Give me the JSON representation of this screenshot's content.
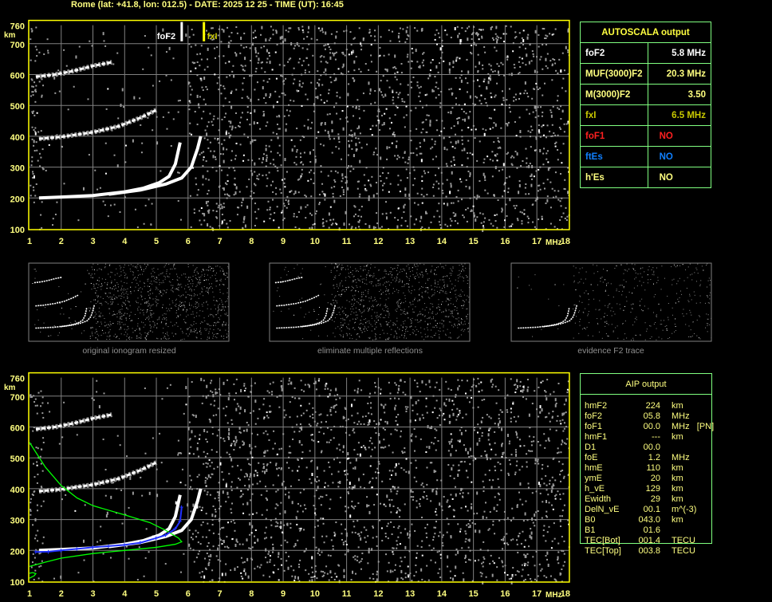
{
  "header": {
    "title": "Rome (lat: +41.8, lon: 012.5) - DATE: 2025 12 25 - TIME (UT): 16:45"
  },
  "colors": {
    "axis": "#ffff00",
    "grid": "#808080",
    "trace": "#ffffff",
    "noise": "#9a9a9a",
    "profile": "#00ff00",
    "aip_points": "#0000ff",
    "table_border": "#80ff80",
    "text_yellow": "#ffff80",
    "fof1": "#ff2020",
    "ftes": "#1080ff",
    "fxi": "#c8c800"
  },
  "autoscala": {
    "title": "AUTOSCALA output",
    "rows": [
      {
        "label": "foF2",
        "value": "5.8 MHz",
        "color": "#ffffff"
      },
      {
        "label": "MUF(3000)F2",
        "value": "20.3 MHz",
        "color": "#ffff80"
      },
      {
        "label": "M(3000)F2",
        "value": "3.50",
        "color": "#ffff80"
      },
      {
        "label": "fxI",
        "value": "6.5 MHz",
        "color": "#c8c800"
      },
      {
        "label": "foF1",
        "value": "NO",
        "color": "#ff2020"
      },
      {
        "label": "ftEs",
        "value": "NO",
        "color": "#1080ff"
      },
      {
        "label": "h'Es",
        "value": "NO",
        "color": "#ffff80"
      }
    ]
  },
  "aip": {
    "title": "AIP output",
    "rows": [
      [
        "hmF2",
        "224",
        "km"
      ],
      [
        "foF2",
        "05.8",
        "MHz"
      ],
      [
        "foF1",
        "00.0",
        "MHz   [PN]"
      ],
      [
        "hmF1",
        "---",
        "km"
      ],
      [
        "D1",
        "00.0",
        ""
      ],
      [
        "foE",
        "1.2",
        "MHz"
      ],
      [
        "hmE",
        "110",
        "km"
      ],
      [
        "ymE",
        "20",
        "km"
      ],
      [
        "h_vE",
        "129",
        "km"
      ],
      [
        "Ewidth",
        "29",
        "km"
      ],
      [
        "DelN_vE",
        "00.1",
        "m^(-3)"
      ],
      [
        "B0",
        "043.0",
        "km"
      ],
      [
        "B1",
        "01.6",
        ""
      ],
      [
        "TEC[Bot]",
        "001.4",
        "TECU"
      ],
      [
        "TEC[Top]",
        "003.8",
        "TECU"
      ]
    ]
  },
  "thumbnails": [
    {
      "caption": "original ionogram resized"
    },
    {
      "caption": "eliminate multiple reflections"
    },
    {
      "caption": "evidence F2 trace"
    }
  ],
  "chart_data": [
    {
      "type": "scatter",
      "title": "",
      "xlabel": "MHz",
      "ylabel": "km",
      "xlim": [
        1,
        18
      ],
      "ylim": [
        100,
        760
      ],
      "xticks": [
        "1",
        "2",
        "3",
        "4",
        "5",
        "6",
        "7",
        "8",
        "9",
        "10",
        "11",
        "12",
        "13",
        "14",
        "15",
        "16",
        "17",
        "18"
      ],
      "yticks": [
        "100",
        "200",
        "300",
        "400",
        "500",
        "600",
        "700",
        "760"
      ],
      "grid": true,
      "markers": [
        {
          "name": "foF2",
          "x": 5.8
        },
        {
          "name": "fxI",
          "x": 6.5
        }
      ],
      "series": [
        {
          "trace": "F2 ordinary",
          "points": [
            [
              1.3,
              200
            ],
            [
              2,
              203
            ],
            [
              3,
              208
            ],
            [
              4,
              220
            ],
            [
              4.6,
              232
            ],
            [
              5.1,
              250
            ],
            [
              5.4,
              270
            ],
            [
              5.6,
              310
            ],
            [
              5.75,
              380
            ]
          ]
        },
        {
          "trace": "F2 extraordinary",
          "points": [
            [
              3.5,
              212
            ],
            [
              4.5,
              226
            ],
            [
              5.3,
              245
            ],
            [
              5.8,
              265
            ],
            [
              6.1,
              300
            ],
            [
              6.3,
              360
            ],
            [
              6.4,
              400
            ]
          ]
        },
        {
          "trace": "F2 second hop",
          "points": [
            [
              1.3,
              392
            ],
            [
              2,
              398
            ],
            [
              3,
              413
            ],
            [
              3.8,
              432
            ],
            [
              4.5,
              460
            ],
            [
              5,
              485
            ]
          ]
        },
        {
          "trace": "F2 third hop",
          "points": [
            [
              1.2,
              593
            ],
            [
              1.8,
              600
            ],
            [
              2.4,
              612
            ],
            [
              3,
              628
            ],
            [
              3.6,
              640
            ]
          ]
        }
      ]
    },
    {
      "type": "line",
      "xlim": [
        1,
        18
      ],
      "ylim": [
        100,
        760
      ],
      "xticks": [
        "1",
        "2",
        "3",
        "4",
        "5",
        "6",
        "7",
        "8",
        "9",
        "10",
        "11",
        "12",
        "13",
        "14",
        "15",
        "16",
        "17",
        "18"
      ],
      "yticks": [
        "100",
        "200",
        "300",
        "400",
        "500",
        "600",
        "700",
        "760"
      ],
      "xlabel": "MHz",
      "ylabel": "km",
      "grid": true,
      "series": [
        {
          "trace": "AIP profile",
          "color": "#00ff00",
          "points": [
            [
              1,
              550
            ],
            [
              1.5,
              470
            ],
            [
              2,
              410
            ],
            [
              2.5,
              370
            ],
            [
              3,
              345
            ],
            [
              4,
              315
            ],
            [
              4.8,
              290
            ],
            [
              5.3,
              265
            ],
            [
              5.7,
              240
            ],
            [
              5.8,
              228
            ],
            [
              5.6,
              220
            ],
            [
              5,
              210
            ],
            [
              4,
              200
            ],
            [
              3,
              190
            ],
            [
              2,
              175
            ],
            [
              1.5,
              162
            ],
            [
              1,
              148
            ]
          ]
        },
        {
          "trace": "E profile",
          "color": "#00ff00",
          "points": [
            [
              1,
              110
            ],
            [
              1.15,
              118
            ],
            [
              1.2,
              125
            ],
            [
              1.1,
              128
            ],
            [
              1,
              126
            ]
          ]
        },
        {
          "trace": "AIP virtual heights",
          "color": "#0000ff",
          "points": [
            [
              1.2,
              195
            ],
            [
              1.6,
              196
            ],
            [
              2,
              200
            ],
            [
              2.5,
              205
            ],
            [
              3,
              210
            ],
            [
              3.5,
              214
            ],
            [
              4,
              218
            ],
            [
              4.5,
              225
            ],
            [
              5,
              240
            ],
            [
              5.3,
              250
            ],
            [
              5.6,
              270
            ],
            [
              5.75,
              295
            ],
            [
              5.8,
              340
            ]
          ]
        }
      ]
    }
  ]
}
